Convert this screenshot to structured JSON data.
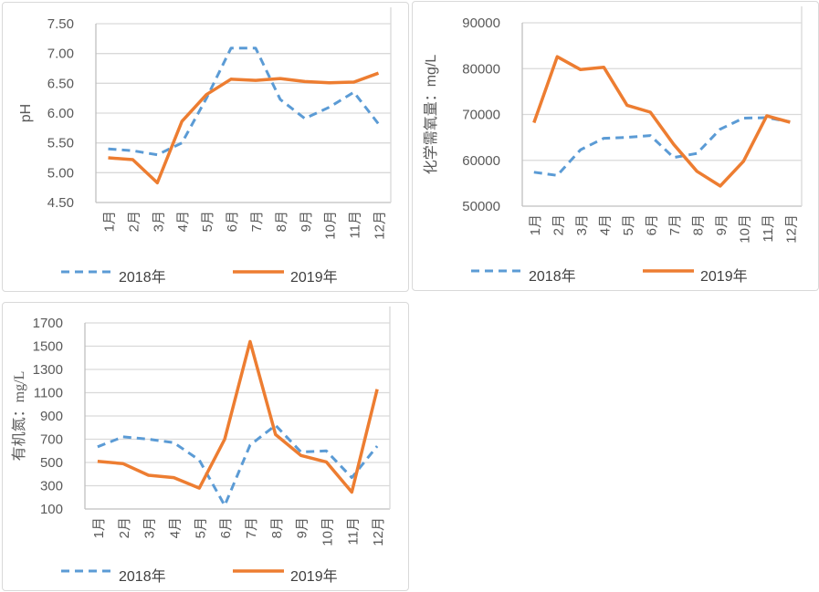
{
  "colors": {
    "series_2018": "#5B9BD5",
    "series_2019": "#ED7D31",
    "gridline": "#D9D9D9",
    "axis_line": "#BFBFBF",
    "tick_text": "#595959",
    "legend_text": "#404040",
    "panel_border": "#D9D9D9",
    "background": "#FFFFFF"
  },
  "chart_data": [
    {
      "id": "ph",
      "type": "line",
      "title": "",
      "ylabel": "pH",
      "ylabel_serif": false,
      "xlabel": "",
      "ylim": [
        4.5,
        7.5
      ],
      "ytick_step": 0.5,
      "yticks": [
        "4.50",
        "5.00",
        "5.50",
        "6.00",
        "6.50",
        "7.00",
        "7.50"
      ],
      "categories": [
        "1月",
        "2月",
        "3月",
        "4月",
        "5月",
        "6月",
        "7月",
        "8月",
        "9月",
        "10月",
        "11月",
        "12月"
      ],
      "grid": true,
      "legend_position": "bottom",
      "series": [
        {
          "name": "2018年",
          "color": "#5B9BD5",
          "style": "dashed",
          "values": [
            5.4,
            5.37,
            5.3,
            5.5,
            6.25,
            7.09,
            7.09,
            6.23,
            5.91,
            6.1,
            6.35,
            5.82
          ]
        },
        {
          "name": "2019年",
          "color": "#ED7D31",
          "style": "solid",
          "values": [
            5.25,
            5.22,
            4.83,
            5.86,
            6.31,
            6.57,
            6.55,
            6.58,
            6.53,
            6.51,
            6.52,
            6.67
          ]
        }
      ]
    },
    {
      "id": "cod",
      "type": "line",
      "title": "",
      "ylabel": "化学需氧量：mg/L",
      "ylabel_serif": false,
      "xlabel": "",
      "ylim": [
        50000,
        90000
      ],
      "ytick_step": 10000,
      "yticks": [
        "50000",
        "60000",
        "70000",
        "80000",
        "90000"
      ],
      "categories": [
        "1月",
        "2月",
        "3月",
        "4月",
        "5月",
        "6月",
        "7月",
        "8月",
        "9月",
        "10月",
        "11月",
        "12月"
      ],
      "grid": true,
      "legend_position": "bottom",
      "series": [
        {
          "name": "2018年",
          "color": "#5B9BD5",
          "style": "dashed",
          "values": [
            57400,
            56700,
            62300,
            64800,
            65000,
            65400,
            60600,
            61500,
            66800,
            69200,
            69300,
            68400
          ]
        },
        {
          "name": "2019年",
          "color": "#ED7D31",
          "style": "solid",
          "values": [
            68200,
            82600,
            79800,
            80300,
            72000,
            70500,
            63500,
            57600,
            54400,
            59800,
            69700,
            68300
          ]
        }
      ]
    },
    {
      "id": "organic-nitrogen",
      "type": "line",
      "title": "",
      "ylabel": "有机氮：mg/L",
      "ylabel_serif": true,
      "xlabel": "",
      "ylim": [
        100,
        1700
      ],
      "ytick_step": 200,
      "yticks": [
        "100",
        "300",
        "500",
        "700",
        "900",
        "1100",
        "1300",
        "1500",
        "1700"
      ],
      "categories": [
        "1月",
        "2月",
        "3月",
        "4月",
        "5月",
        "6月",
        "7月",
        "8月",
        "9月",
        "10月",
        "11月",
        "12月"
      ],
      "grid": true,
      "legend_position": "bottom",
      "series": [
        {
          "name": "2018年",
          "color": "#5B9BD5",
          "style": "dashed",
          "values": [
            635,
            720,
            700,
            670,
            520,
            130,
            650,
            820,
            590,
            600,
            370,
            640
          ]
        },
        {
          "name": "2019年",
          "color": "#ED7D31",
          "style": "solid",
          "values": [
            510,
            490,
            390,
            370,
            280,
            700,
            1540,
            740,
            560,
            505,
            245,
            1130
          ]
        }
      ]
    }
  ]
}
